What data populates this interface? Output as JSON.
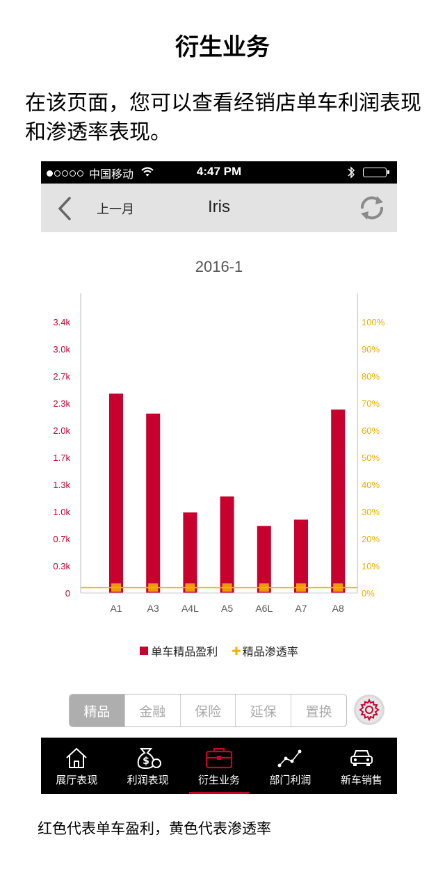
{
  "page": {
    "title": "衍生业务",
    "intro": "在该页面，您可以查看经销店单车利润表现和渗透率表现。",
    "caption": "红色代表单车盈利，黄色代表渗透率"
  },
  "status_bar": {
    "carrier": "中国移动",
    "time": "4:47 PM",
    "signal_icon": "signal-dots-icon",
    "wifi_icon": "wifi-icon",
    "bluetooth_icon": "bluetooth-icon",
    "battery_icon": "battery-icon"
  },
  "nav": {
    "back_icon": "chevron-left-icon",
    "prev_label": "上一月",
    "title": "Iris",
    "refresh_icon": "refresh-icon"
  },
  "colors": {
    "profit": "#c8002e",
    "penetration": "#f5b400",
    "left_axis_text": "#c8002e",
    "right_axis_text": "#e8b000"
  },
  "chart_data": {
    "type": "bar",
    "title": "2016-1",
    "categories": [
      "A1",
      "A3",
      "A4L",
      "A5",
      "A6L",
      "A7",
      "A8"
    ],
    "series": [
      {
        "name": "单车精品盈利",
        "axis": "left",
        "values": [
          2500,
          2250,
          1010,
          1210,
          840,
          920,
          2300
        ]
      },
      {
        "name": "精品渗透率",
        "axis": "right",
        "values": [
          2,
          2,
          2,
          2,
          2,
          2,
          2
        ]
      }
    ],
    "left_ticks": [
      "0",
      "0.3k",
      "0.7k",
      "1.0k",
      "1.3k",
      "1.7k",
      "2.0k",
      "2.3k",
      "2.7k",
      "3.0k",
      "3.4k"
    ],
    "right_ticks": [
      "0%",
      "10%",
      "20%",
      "30%",
      "40%",
      "50%",
      "60%",
      "70%",
      "80%",
      "90%",
      "100%"
    ],
    "ylim_left": [
      0,
      3400
    ],
    "ylim_right": [
      0,
      100
    ],
    "legend_placement": "bottom",
    "grid": false
  },
  "legend": [
    {
      "label": "单车精品盈利"
    },
    {
      "label": "精品渗透率"
    }
  ],
  "tabs": [
    {
      "label": "精品",
      "active": true
    },
    {
      "label": "金融",
      "active": false
    },
    {
      "label": "保险",
      "active": false
    },
    {
      "label": "延保",
      "active": false
    },
    {
      "label": "置换",
      "active": false
    }
  ],
  "settings_icon": "gear-icon",
  "tabbar": [
    {
      "label": "展厅表现",
      "icon": "house-icon",
      "active": false
    },
    {
      "label": "利润表现",
      "icon": "money-bag-icon",
      "active": false
    },
    {
      "label": "衍生业务",
      "icon": "briefcase-icon",
      "active": true
    },
    {
      "label": "部门利润",
      "icon": "line-chart-icon",
      "active": false
    },
    {
      "label": "新车销售",
      "icon": "car-icon",
      "active": false
    }
  ]
}
